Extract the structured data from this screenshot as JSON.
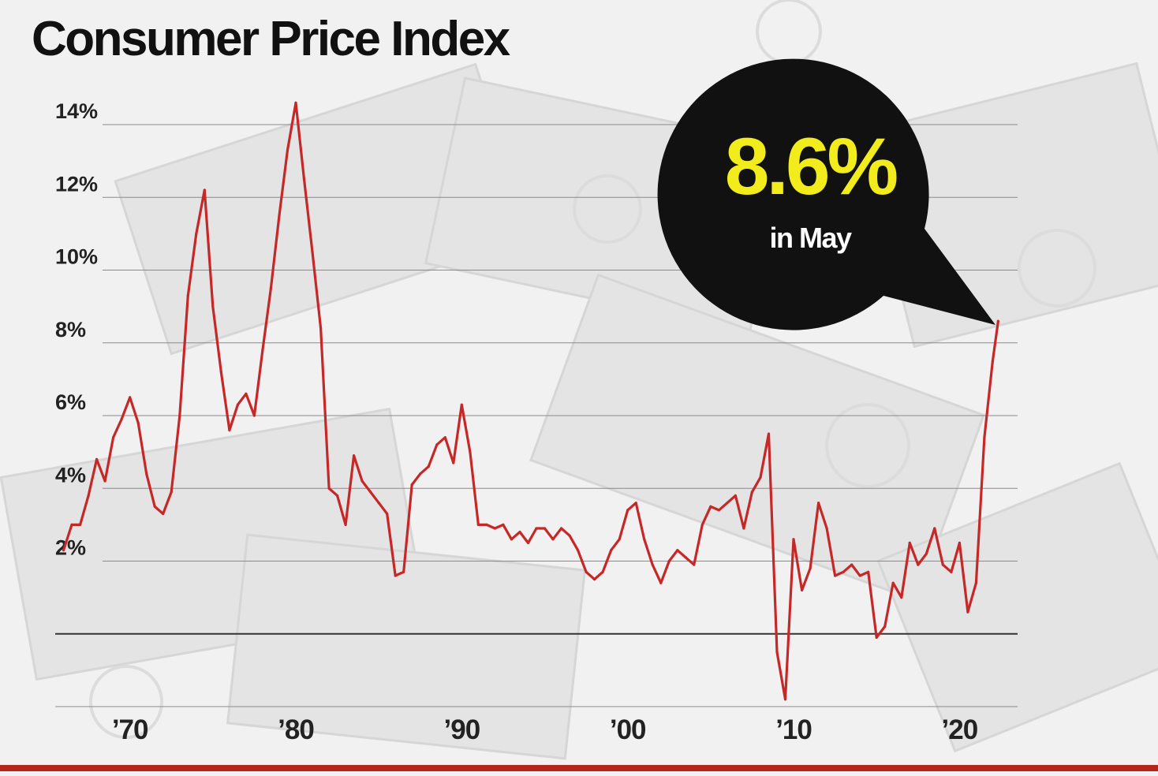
{
  "title": "Consumer Price Index",
  "callout": {
    "value": "8.6%",
    "subtitle": "in May"
  },
  "colors": {
    "line": "#c62828",
    "callout_bg": "#111111",
    "callout_value": "#f3ec1c",
    "callout_subtitle": "#ffffff",
    "bottom_bar": "#b3241c"
  },
  "chart_data": {
    "type": "line",
    "title": "Consumer Price Index",
    "xlabel": "",
    "ylabel": "",
    "ylim": [
      -2,
      14
    ],
    "xlim": [
      1965.5,
      2023.5
    ],
    "y_ticks": [
      14,
      12,
      10,
      8,
      6,
      4,
      2
    ],
    "y_tick_labels": [
      "14%",
      "12%",
      "10%",
      "8%",
      "6%",
      "4%",
      "2%"
    ],
    "baseline": 0,
    "x_ticks": [
      1970,
      1980,
      1990,
      2000,
      2010,
      2020
    ],
    "x_tick_labels": [
      "’70",
      "’80",
      "’90",
      "’00",
      "’10",
      "’20"
    ],
    "grid": true,
    "legend": "none",
    "series": [
      {
        "x": [
          1966.0,
          1966.5,
          1967.0,
          1967.5,
          1968.0,
          1968.5,
          1969.0,
          1969.5,
          1970.0,
          1970.5,
          1971.0,
          1971.5,
          1972.0,
          1972.5,
          1973.0,
          1973.5,
          1974.0,
          1974.5,
          1975.0,
          1975.5,
          1976.0,
          1976.5,
          1977.0,
          1977.5,
          1978.0,
          1978.5,
          1979.0,
          1979.5,
          1980.0,
          1980.5,
          1981.0,
          1981.5,
          1982.0,
          1982.5,
          1983.0,
          1983.5,
          1984.0,
          1984.5,
          1985.0,
          1985.5,
          1986.0,
          1986.5,
          1987.0,
          1987.5,
          1988.0,
          1988.5,
          1989.0,
          1989.5,
          1990.0,
          1990.5,
          1991.0,
          1991.5,
          1992.0,
          1992.5,
          1993.0,
          1993.5,
          1994.0,
          1994.5,
          1995.0,
          1995.5,
          1996.0,
          1996.5,
          1997.0,
          1997.5,
          1998.0,
          1998.5,
          1999.0,
          1999.5,
          2000.0,
          2000.5,
          2001.0,
          2001.5,
          2002.0,
          2002.5,
          2003.0,
          2003.5,
          2004.0,
          2004.5,
          2005.0,
          2005.5,
          2006.0,
          2006.5,
          2007.0,
          2007.5,
          2008.0,
          2008.5,
          2009.0,
          2009.5,
          2010.0,
          2010.5,
          2011.0,
          2011.5,
          2012.0,
          2012.5,
          2013.0,
          2013.5,
          2014.0,
          2014.5,
          2015.0,
          2015.5,
          2016.0,
          2016.5,
          2017.0,
          2017.5,
          2018.0,
          2018.5,
          2019.0,
          2019.5,
          2020.0,
          2020.5,
          2021.0,
          2021.5,
          2022.0,
          2022.33
        ],
        "y": [
          2.3,
          3.0,
          3.0,
          3.8,
          4.8,
          4.2,
          5.4,
          5.9,
          6.5,
          5.8,
          4.4,
          3.5,
          3.3,
          3.9,
          6.0,
          9.3,
          11.0,
          12.2,
          9.0,
          7.2,
          5.6,
          6.3,
          6.6,
          6.0,
          7.8,
          9.5,
          11.5,
          13.3,
          14.6,
          12.5,
          10.5,
          8.4,
          4.0,
          3.8,
          3.0,
          4.9,
          4.2,
          3.9,
          3.6,
          3.3,
          1.6,
          1.7,
          4.1,
          4.4,
          4.6,
          5.2,
          5.4,
          4.7,
          6.3,
          5.0,
          3.0,
          3.0,
          2.9,
          3.0,
          2.6,
          2.8,
          2.5,
          2.9,
          2.9,
          2.6,
          2.9,
          2.7,
          2.3,
          1.7,
          1.5,
          1.7,
          2.3,
          2.6,
          3.4,
          3.6,
          2.6,
          1.9,
          1.4,
          2.0,
          2.3,
          2.1,
          1.9,
          3.0,
          3.5,
          3.4,
          3.6,
          3.8,
          2.9,
          3.9,
          4.3,
          5.5,
          -0.5,
          -1.8,
          2.6,
          1.2,
          1.8,
          3.6,
          2.9,
          1.6,
          1.7,
          1.9,
          1.6,
          1.7,
          -0.1,
          0.2,
          1.4,
          1.0,
          2.5,
          1.9,
          2.2,
          2.9,
          1.9,
          1.7,
          2.5,
          0.6,
          1.4,
          5.4,
          7.5,
          8.6
        ]
      }
    ]
  }
}
